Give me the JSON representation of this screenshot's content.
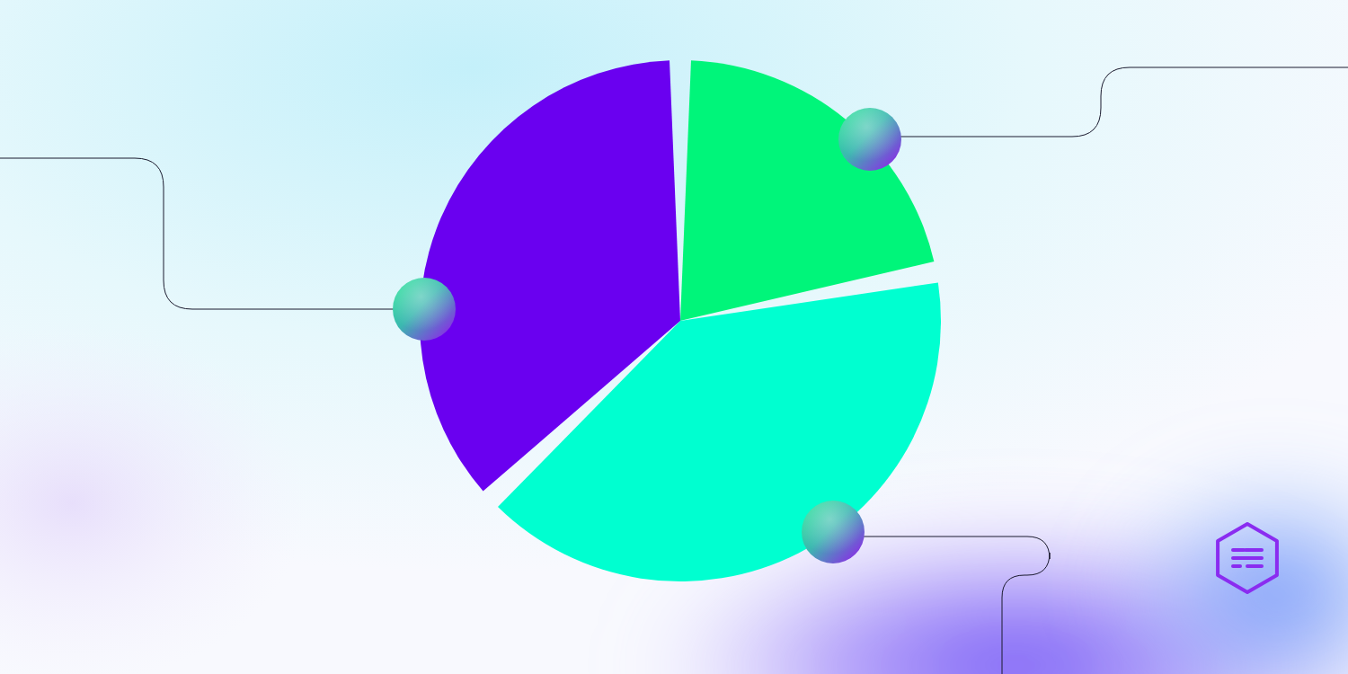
{
  "chart_data": {
    "type": "pie",
    "values": [
      22,
      41,
      37
    ],
    "colors": [
      "#00f57a",
      "#00ffd0",
      "#6a00f0"
    ]
  }
}
